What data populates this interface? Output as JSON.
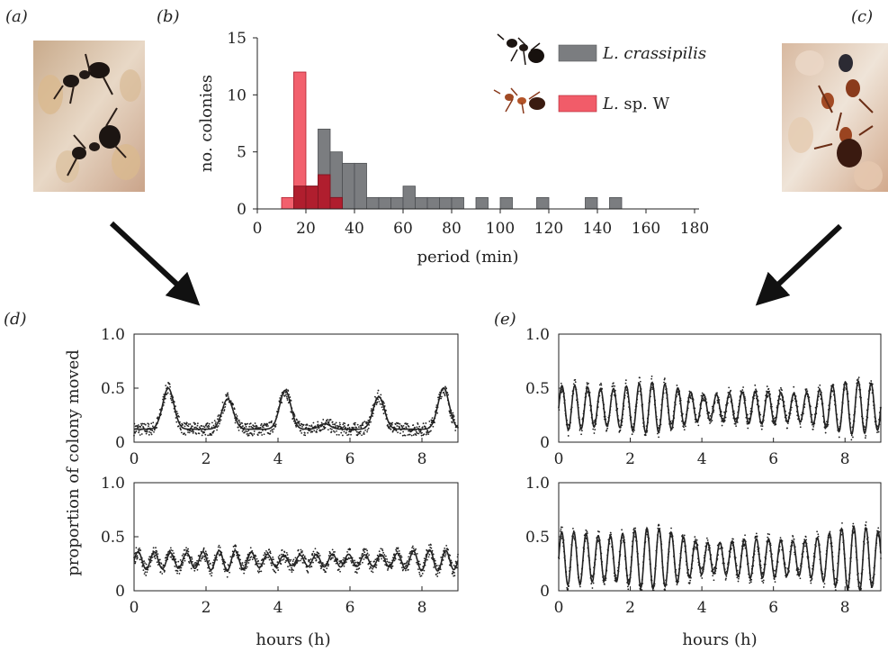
{
  "panels": {
    "a": "(a)",
    "b": "(b)",
    "c": "(c)",
    "d": "(d)",
    "e": "(e)"
  },
  "colors": {
    "crassipilis": "#7b7d80",
    "spW": "#ee3344",
    "overlap": "#b01e2e",
    "trace": "#222222"
  },
  "icons": {
    "photo_a": "ant-colony-photo-l-crassipilis",
    "photo_c": "ant-colony-photo-l-sp-w",
    "arrow_left": "arrow-down-right-icon",
    "arrow_right": "arrow-down-left-icon",
    "legend_ant_1": "black-ant-icon",
    "legend_ant_2": "red-ant-icon"
  },
  "chart_data": [
    {
      "id": "b",
      "type": "bar",
      "title": "",
      "xlabel": "period (min)",
      "ylabel": "no. colonies",
      "xlim": [
        0,
        180
      ],
      "ylim": [
        0,
        15
      ],
      "xticks": [
        "0",
        "20",
        "40",
        "60",
        "80",
        "100",
        "120",
        "140",
        "160",
        "180"
      ],
      "yticks": [
        "0",
        "5",
        "10",
        "15"
      ],
      "legend_position": "top-right",
      "bin_width": 5,
      "series": [
        {
          "name": "L. crassipilis",
          "legend_italic": "L. crassipilis",
          "legend_plain": "",
          "bins": [
            {
              "x0": 15,
              "count": 2
            },
            {
              "x0": 20,
              "count": 2
            },
            {
              "x0": 25,
              "count": 7
            },
            {
              "x0": 30,
              "count": 5
            },
            {
              "x0": 35,
              "count": 4
            },
            {
              "x0": 40,
              "count": 4
            },
            {
              "x0": 45,
              "count": 1
            },
            {
              "x0": 50,
              "count": 1
            },
            {
              "x0": 55,
              "count": 1
            },
            {
              "x0": 60,
              "count": 2
            },
            {
              "x0": 65,
              "count": 1
            },
            {
              "x0": 70,
              "count": 1
            },
            {
              "x0": 75,
              "count": 1
            },
            {
              "x0": 80,
              "count": 1
            },
            {
              "x0": 90,
              "count": 1
            },
            {
              "x0": 100,
              "count": 1
            },
            {
              "x0": 115,
              "count": 1
            },
            {
              "x0": 135,
              "count": 1
            },
            {
              "x0": 145,
              "count": 1
            }
          ]
        },
        {
          "name": "L. sp. W",
          "legend_italic": "L.",
          "legend_plain": " sp. W",
          "bins": [
            {
              "x0": 10,
              "count": 1
            },
            {
              "x0": 15,
              "count": 12
            },
            {
              "x0": 20,
              "count": 2
            },
            {
              "x0": 25,
              "count": 3
            },
            {
              "x0": 30,
              "count": 1
            }
          ]
        }
      ]
    },
    {
      "id": "d-top",
      "type": "line",
      "ylabel": "proportion of colony moved",
      "xlabel": "",
      "xlim": [
        0,
        9
      ],
      "ylim": [
        0,
        1
      ],
      "xticks": [
        "0",
        "2",
        "4",
        "6",
        "8"
      ],
      "yticks": [
        "0",
        "0.5",
        "1.0"
      ],
      "baseline": 0.12,
      "peaks": [
        [
          0.95,
          0.5
        ],
        [
          2.6,
          0.4
        ],
        [
          4.2,
          0.48
        ],
        [
          5.3,
          0.17
        ],
        [
          6.8,
          0.42
        ],
        [
          8.6,
          0.5
        ]
      ],
      "peak_width": 0.22
    },
    {
      "id": "d-bottom",
      "type": "line",
      "xlabel": "hours (h)",
      "xlim": [
        0,
        9
      ],
      "ylim": [
        0,
        1
      ],
      "xticks": [
        "0",
        "2",
        "4",
        "6",
        "8"
      ],
      "yticks": [
        "0",
        "0.5",
        "1.0"
      ],
      "mean": 0.28,
      "amplitude": 0.08,
      "period_h": 0.45
    },
    {
      "id": "e-top",
      "type": "line",
      "xlabel": "",
      "xlim": [
        0,
        9
      ],
      "ylim": [
        0,
        1
      ],
      "xticks": [
        "0",
        "2",
        "4",
        "6",
        "8"
      ],
      "yticks": [
        "0",
        "0.5",
        "1.0"
      ],
      "mean": 0.32,
      "amplitude": 0.2,
      "period_h": 0.36
    },
    {
      "id": "e-bottom",
      "type": "line",
      "xlabel": "hours (h)",
      "xlim": [
        0,
        9
      ],
      "ylim": [
        0,
        1
      ],
      "xticks": [
        "0",
        "2",
        "4",
        "6",
        "8"
      ],
      "yticks": [
        "0",
        "0.5",
        "1.0"
      ],
      "mean": 0.3,
      "amplitude": 0.24,
      "period_h": 0.34
    }
  ]
}
